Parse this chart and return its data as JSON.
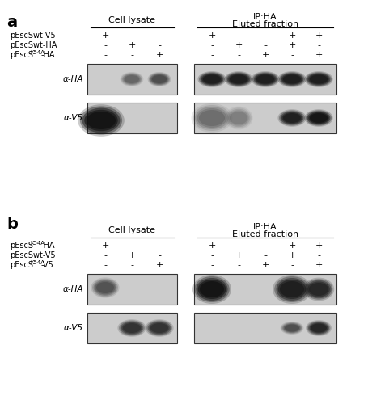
{
  "panel_a_label": "a",
  "panel_b_label": "b",
  "section_a": {
    "cell_lysate_header": "Cell lysate",
    "ip_ha_header": "IP:HA",
    "eluted_header": "Eluted fraction",
    "row_labels": [
      "pEscSwt-V5",
      "pEscSwt-HA",
      "pEscSK54A-HA"
    ],
    "cell_lysate_signs": [
      [
        "+",
        "-",
        "-"
      ],
      [
        "-",
        "+",
        "-"
      ],
      [
        "-",
        "-",
        "+"
      ]
    ],
    "ip_signs": [
      [
        "+",
        "-",
        "-",
        "+",
        "+"
      ],
      [
        "-",
        "+",
        "-",
        "+",
        "-"
      ],
      [
        "-",
        "-",
        "+",
        "-",
        "+"
      ]
    ],
    "antibody_labels": [
      "α-HA",
      "α-V5"
    ]
  },
  "section_b": {
    "cell_lysate_header": "Cell lysate",
    "ip_ha_header": "IP:HA",
    "eluted_header": "Eluted fraction",
    "row_labels": [
      "pEscSK54A-HA",
      "pEscSwt-V5",
      "pEscSK54A-V5"
    ],
    "cell_lysate_signs": [
      [
        "+",
        "-",
        "-"
      ],
      [
        "-",
        "+",
        "-"
      ],
      [
        "-",
        "-",
        "+"
      ]
    ],
    "ip_signs": [
      [
        "+",
        "-",
        "-",
        "+",
        "+"
      ],
      [
        "-",
        "+",
        "-",
        "+",
        "-"
      ],
      [
        "-",
        "-",
        "+",
        "-",
        "+"
      ]
    ],
    "antibody_labels": [
      "α-HA",
      "α-V5"
    ]
  },
  "bg_color": "#ffffff",
  "blot_bg": "#cccccc",
  "band_color_dark": "#1a1a1a",
  "band_color_mid": "#555555",
  "band_color_light": "#999999"
}
